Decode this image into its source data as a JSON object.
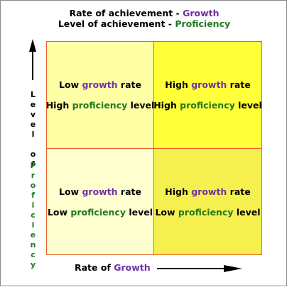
{
  "header": {
    "line1": [
      "Rate of achievement - ",
      "Growth"
    ],
    "line2": [
      "Level of achievement - ",
      "Proficiency"
    ]
  },
  "quadrants": [
    {
      "line1": [
        "Low ",
        "growth",
        " rate"
      ],
      "line2": [
        "High ",
        "proficiency",
        " level"
      ]
    },
    {
      "line1": [
        "High ",
        "growth",
        " rate"
      ],
      "line2": [
        "High ",
        "proficiency",
        " level"
      ]
    },
    {
      "line1": [
        "Low ",
        "growth",
        " rate"
      ],
      "line2": [
        "Low ",
        "proficiency",
        " level"
      ]
    },
    {
      "line1": [
        "High ",
        "growth",
        " rate"
      ],
      "line2": [
        "Low ",
        "proficiency",
        " level"
      ]
    }
  ],
  "y_axis": [
    "Level of",
    "Proficiency"
  ],
  "x_axis": [
    "Rate of ",
    "Growth"
  ]
}
